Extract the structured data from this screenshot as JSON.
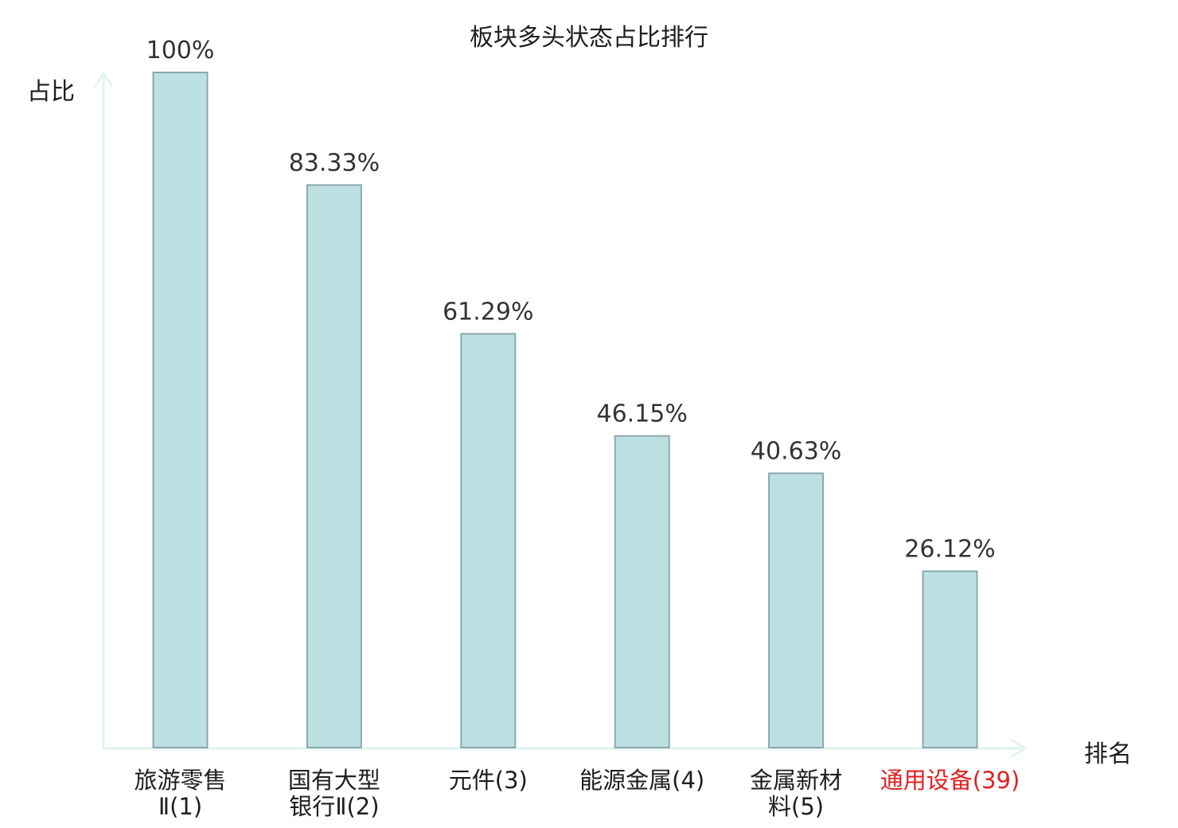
{
  "chart_data": {
    "type": "bar",
    "title": "板块多头状态占比排行",
    "ylabel": "占比",
    "xlabel": "排名",
    "ylim": [
      0,
      100
    ],
    "grid": false,
    "legend": "none",
    "categories": [
      {
        "name": "旅游零售\nⅡ",
        "rank": "(1)",
        "highlight": false
      },
      {
        "name": "国有大型\n银行Ⅱ",
        "rank": "(2)",
        "highlight": false
      },
      {
        "name": "元件",
        "rank": "(3)",
        "highlight": false
      },
      {
        "name": "能源金属",
        "rank": "(4)",
        "highlight": false
      },
      {
        "name": "金属新材\n料",
        "rank": "(5)",
        "highlight": false
      },
      {
        "name": "通用设备",
        "rank": "(39)",
        "highlight": true
      }
    ],
    "values": [
      100,
      83.33,
      61.29,
      46.15,
      40.63,
      26.12
    ],
    "value_labels": [
      "100%",
      "83.33%",
      "61.29%",
      "46.15%",
      "40.63%",
      "26.12%"
    ]
  },
  "colors": {
    "bar_fill": "#bde0e3",
    "bar_stroke": "#8aa8ad",
    "axis": "#e2f3f0",
    "highlight_text": "#e02020"
  }
}
